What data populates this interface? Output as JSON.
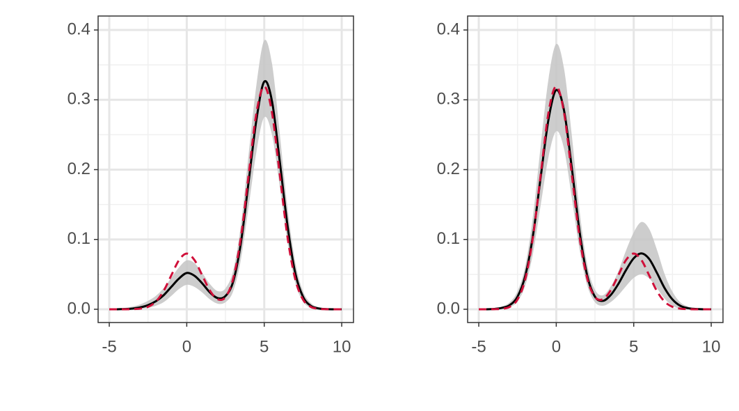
{
  "chart_data": [
    {
      "type": "line",
      "x": [
        -5,
        -4.5,
        -4,
        -3.5,
        -3,
        -2.5,
        -2,
        -1.5,
        -1,
        -0.5,
        0,
        0.5,
        1,
        1.5,
        2,
        2.5,
        3,
        3.5,
        4,
        4.5,
        5,
        5.5,
        6,
        6.5,
        7,
        7.5,
        8,
        8.5,
        9,
        9.5,
        10
      ],
      "band": {
        "color": "#c4c4c4",
        "upper": [
          0.001,
          0.001,
          0.002,
          0.004,
          0.007,
          0.012,
          0.019,
          0.03,
          0.045,
          0.06,
          0.07,
          0.066,
          0.052,
          0.036,
          0.026,
          0.03,
          0.056,
          0.122,
          0.224,
          0.322,
          0.385,
          0.352,
          0.252,
          0.146,
          0.068,
          0.026,
          0.009,
          0.003,
          0.001,
          0.001,
          0.001
        ],
        "lower": [
          0,
          0,
          0,
          0,
          0.001,
          0.002,
          0.005,
          0.01,
          0.019,
          0.029,
          0.035,
          0.032,
          0.024,
          0.014,
          0.008,
          0.01,
          0.026,
          0.072,
          0.148,
          0.226,
          0.275,
          0.25,
          0.176,
          0.096,
          0.038,
          0.011,
          0.002,
          0,
          0,
          0,
          0
        ]
      },
      "series": [
        {
          "color": "#000000",
          "dash": false,
          "values": [
            0,
            0,
            0.0003,
            0.001,
            0.0027,
            0.0059,
            0.0114,
            0.0199,
            0.032,
            0.044,
            0.052,
            0.048,
            0.037,
            0.024,
            0.016,
            0.019,
            0.04,
            0.096,
            0.184,
            0.272,
            0.326,
            0.298,
            0.212,
            0.12,
            0.052,
            0.018,
            0.005,
            0.0012,
            0.0002,
            0,
            0
          ]
        },
        {
          "color": "#d0103a",
          "dash": true,
          "values": [
            0,
            0,
            0,
            0.0002,
            0.0009,
            0.0035,
            0.0108,
            0.0259,
            0.0484,
            0.0704,
            0.0798,
            0.0704,
            0.0485,
            0.0266,
            0.0143,
            0.0175,
            0.0441,
            0.1038,
            0.1936,
            0.2817,
            0.3191,
            0.2817,
            0.1936,
            0.1036,
            0.0432,
            0.014,
            0.0035,
            0.0007,
            0.0001,
            0,
            0
          ]
        }
      ],
      "xlim": [
        -5.72,
        10.76
      ],
      "xticks": [
        -5,
        0,
        5,
        10
      ],
      "ylim": [
        -0.019,
        0.42
      ],
      "yticks": [
        {
          "value": 0,
          "label": "0.0"
        },
        0.1,
        0.2,
        0.3,
        0.4
      ],
      "grid": true,
      "minor_grid": true
    },
    {
      "type": "line",
      "x": [
        -5,
        -4.5,
        -4,
        -3.5,
        -3,
        -2.5,
        -2,
        -1.5,
        -1,
        -0.5,
        0,
        0.5,
        1,
        1.5,
        2,
        2.5,
        3,
        3.5,
        4,
        4.5,
        5,
        5.5,
        6,
        6.5,
        7,
        7.5,
        8,
        8.5,
        9,
        9.5,
        10
      ],
      "band": {
        "color": "#c4c4c4",
        "upper": [
          0.001,
          0.001,
          0.002,
          0.004,
          0.01,
          0.026,
          0.062,
          0.134,
          0.235,
          0.33,
          0.38,
          0.345,
          0.25,
          0.142,
          0.064,
          0.028,
          0.02,
          0.032,
          0.054,
          0.084,
          0.11,
          0.125,
          0.115,
          0.085,
          0.05,
          0.025,
          0.01,
          0.004,
          0.001,
          0.001,
          0.001
        ],
        "lower": [
          0,
          0,
          0,
          0.001,
          0.003,
          0.011,
          0.034,
          0.08,
          0.15,
          0.218,
          0.255,
          0.23,
          0.16,
          0.086,
          0.034,
          0.01,
          0.005,
          0.01,
          0.02,
          0.033,
          0.045,
          0.05,
          0.044,
          0.03,
          0.015,
          0.005,
          0.001,
          0,
          0,
          0,
          0
        ]
      },
      "series": [
        {
          "color": "#000000",
          "dash": false,
          "values": [
            0,
            0,
            0.0005,
            0.002,
            0.006,
            0.018,
            0.048,
            0.106,
            0.19,
            0.272,
            0.314,
            0.285,
            0.203,
            0.112,
            0.048,
            0.018,
            0.012,
            0.02,
            0.036,
            0.056,
            0.073,
            0.08,
            0.072,
            0.052,
            0.03,
            0.014,
            0.005,
            0.0015,
            0.0004,
            0,
            0
          ]
        },
        {
          "color": "#d0103a",
          "dash": true,
          "values": [
            0,
            0,
            0.0001,
            0.0007,
            0.0035,
            0.014,
            0.0432,
            0.1036,
            0.1936,
            0.2817,
            0.3191,
            0.2817,
            0.1936,
            0.1038,
            0.0441,
            0.0175,
            0.0143,
            0.0266,
            0.0485,
            0.0704,
            0.0798,
            0.0704,
            0.0484,
            0.0259,
            0.0108,
            0.0035,
            0.0009,
            0.0002,
            0,
            0,
            0
          ]
        }
      ],
      "xlim": [
        -5.72,
        10.76
      ],
      "xticks": [
        -5,
        0,
        5,
        10
      ],
      "ylim": [
        -0.019,
        0.42
      ],
      "yticks": [
        {
          "value": 0,
          "label": "0.0"
        },
        0.1,
        0.2,
        0.3,
        0.4
      ],
      "grid": true,
      "minor_grid": true
    }
  ]
}
